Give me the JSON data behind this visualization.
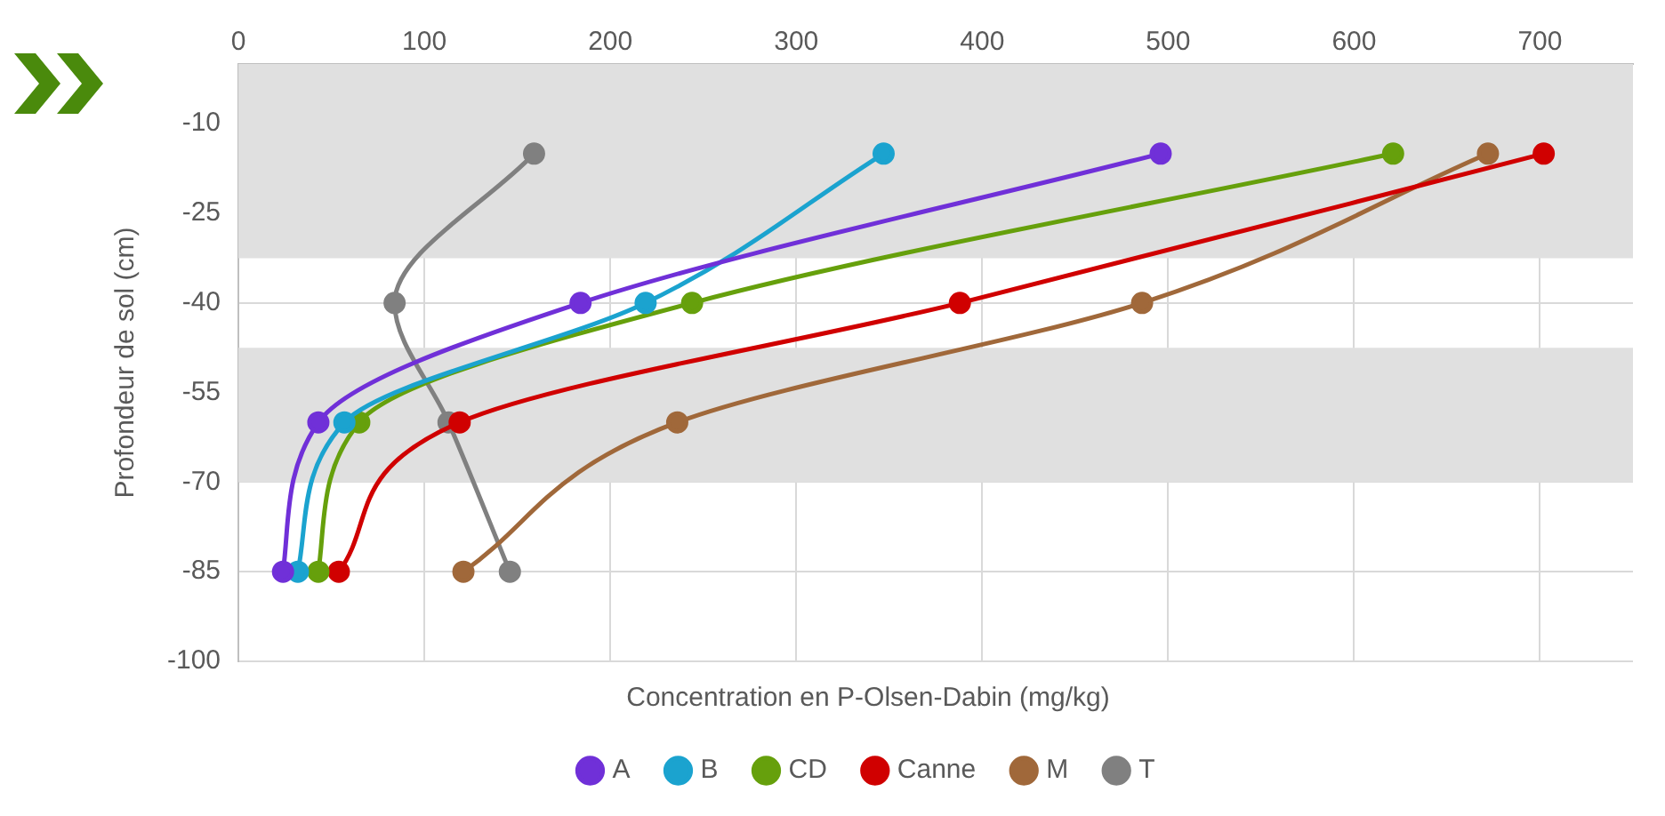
{
  "chart_data": {
    "type": "line",
    "xlabel": "Concentration en P-Olsen-Dabin (mg/kg)",
    "ylabel": "Profondeur de sol (cm)",
    "xlim": [
      0,
      750
    ],
    "xticks": [
      0,
      100,
      200,
      300,
      400,
      500,
      600,
      700
    ],
    "ylim": [
      -100,
      0
    ],
    "yticks": [
      -100,
      -85,
      -70,
      -55,
      -40,
      -25,
      -10
    ],
    "grid": true,
    "legend": "bottom",
    "marker": "circle",
    "bands": [
      {
        "axis": "y",
        "from": -32.5,
        "to": 0,
        "color": "#e0e0e0"
      },
      {
        "axis": "y",
        "from": -70,
        "to": -47.5,
        "color": "#e0e0e0"
      }
    ],
    "series": [
      {
        "name": "A",
        "color": "#7030d8",
        "x": [
          496,
          184,
          43,
          24
        ],
        "values": [
          -15,
          -40,
          -60,
          -85
        ]
      },
      {
        "name": "B",
        "color": "#1ba3cf",
        "x": [
          347,
          219,
          57,
          32
        ],
        "values": [
          -15,
          -40,
          -60,
          -85
        ]
      },
      {
        "name": "CD",
        "color": "#66a00c",
        "x": [
          621,
          244,
          65,
          43
        ],
        "values": [
          -15,
          -40,
          -60,
          -85
        ]
      },
      {
        "name": "Canne",
        "color": "#d00000",
        "x": [
          702,
          388,
          119,
          54
        ],
        "values": [
          -15,
          -40,
          -60,
          -85
        ]
      },
      {
        "name": "M",
        "color": "#a0683a",
        "x": [
          672,
          486,
          236,
          121
        ],
        "values": [
          -15,
          -40,
          -60,
          -85
        ]
      },
      {
        "name": "T",
        "color": "#808080",
        "x": [
          159,
          84,
          113,
          146
        ],
        "values": [
          -15,
          -40,
          -60,
          -85
        ]
      }
    ]
  }
}
